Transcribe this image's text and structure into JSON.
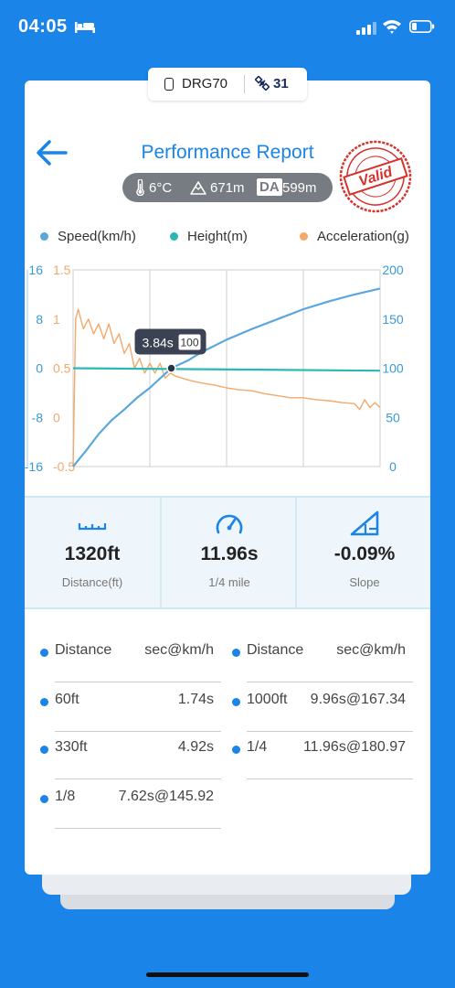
{
  "status_bar": {
    "time": "04:05"
  },
  "device": {
    "name": "DRG70",
    "satellites": "31"
  },
  "header": {
    "title": "Performance Report",
    "stamp_text": "Valid"
  },
  "conditions": {
    "temperature": "6°C",
    "altitude": "671m",
    "da_label": "DA",
    "density_altitude": "599m"
  },
  "legend": {
    "speed": "Speed(km/h)",
    "height": "Height(m)",
    "acceleration": "Acceleration(g)"
  },
  "tooltip": {
    "time": "3.84s",
    "speed": "100"
  },
  "chart_data": {
    "type": "line",
    "y_axis_height": {
      "ticks": [
        "16",
        "8",
        "0",
        "-8",
        "-16"
      ],
      "range": [
        -16,
        16
      ],
      "color": "#3a9ad9"
    },
    "y_axis_accel": {
      "ticks": [
        "1.5",
        "1",
        "0.5",
        "0",
        "-0.5"
      ],
      "range": [
        -0.5,
        1.5
      ],
      "color": "#f2a96b"
    },
    "y_axis_speed": {
      "ticks": [
        "200",
        "150",
        "100",
        "50",
        "0"
      ],
      "range": [
        0,
        200
      ],
      "color": "#3a9ad9"
    },
    "x_range_s": [
      0,
      12
    ],
    "series": [
      {
        "name": "Speed(km/h)",
        "color": "#5aa7dc",
        "axis": "speed",
        "x": [
          0,
          0.5,
          1,
          1.5,
          2,
          2.5,
          3,
          3.5,
          3.84,
          4.5,
          5,
          6,
          7,
          8,
          9,
          10,
          11,
          12
        ],
        "y": [
          0,
          16,
          33,
          47,
          58,
          70,
          80,
          92,
          100,
          108,
          116,
          129,
          140,
          150,
          160,
          168,
          175,
          181
        ]
      },
      {
        "name": "Height(m)",
        "color": "#2bb7b4",
        "axis": "height",
        "x": [
          0,
          12
        ],
        "y": [
          0,
          -0.4
        ]
      },
      {
        "name": "Acceleration(g)",
        "color": "#f2a96b",
        "axis": "accel",
        "x": [
          0,
          0.1,
          0.2,
          0.4,
          0.6,
          0.8,
          1,
          1.2,
          1.4,
          1.6,
          1.8,
          2,
          2.2,
          2.4,
          2.6,
          2.8,
          3,
          3.2,
          3.4,
          3.6,
          3.8,
          4,
          4.5,
          5,
          5.5,
          6,
          6.5,
          7,
          7.5,
          8,
          8.5,
          9,
          9.5,
          10,
          10.5,
          11,
          11.2,
          11.4,
          11.6,
          11.8,
          12
        ],
        "y": [
          -0.5,
          1.0,
          1.1,
          0.9,
          1.0,
          0.85,
          0.95,
          0.8,
          0.95,
          0.75,
          0.85,
          0.65,
          0.75,
          0.5,
          0.6,
          0.45,
          0.55,
          0.45,
          0.55,
          0.4,
          0.45,
          0.42,
          0.38,
          0.35,
          0.33,
          0.3,
          0.28,
          0.27,
          0.24,
          0.22,
          0.2,
          0.2,
          0.18,
          0.17,
          0.15,
          0.14,
          0.08,
          0.18,
          0.1,
          0.15,
          0.1
        ]
      }
    ],
    "marker": {
      "x": 3.84,
      "speed": 100
    }
  },
  "stats": [
    {
      "value": "1320ft",
      "label": "Distance(ft)"
    },
    {
      "value": "11.96s",
      "label": "1/4 mile"
    },
    {
      "value": "-0.09%",
      "label": "Slope"
    }
  ],
  "table": {
    "headers": [
      {
        "k": "Distance",
        "v": "sec@km/h"
      },
      {
        "k": "Distance",
        "v": "sec@km/h"
      }
    ],
    "rows": [
      {
        "k": "60ft",
        "v": "1.74s"
      },
      {
        "k": "1000ft",
        "v": "9.96s@167.34"
      },
      {
        "k": "330ft",
        "v": "4.92s"
      },
      {
        "k": "1/4",
        "v": "11.96s@180.97"
      },
      {
        "k": "1/8",
        "v": "7.62s@145.92"
      }
    ]
  },
  "colors": {
    "accent": "#1a84e8",
    "speed": "#5aa7dc",
    "height": "#2bb7b4",
    "acceleration": "#f2a96b",
    "stamp": "#d6312b"
  }
}
